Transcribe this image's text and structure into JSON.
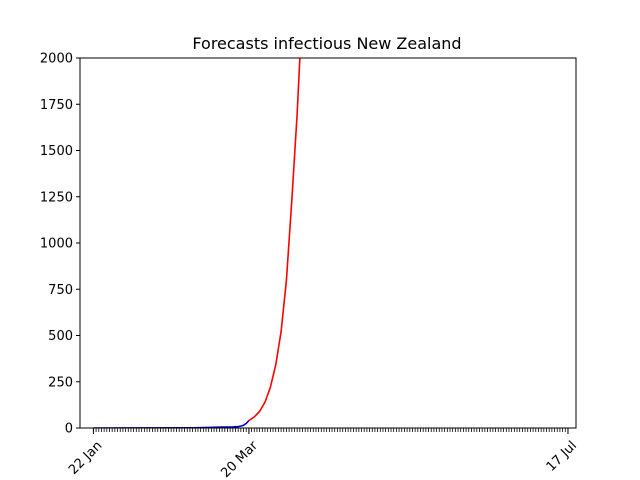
{
  "chart_data": {
    "type": "line",
    "title": "Forecasts infectious New Zealand",
    "xlabel": "",
    "ylabel": "",
    "ylim": [
      0,
      2000
    ],
    "xlim": [
      "2020-01-17",
      "2020-07-20"
    ],
    "yticks": [
      0,
      250,
      500,
      750,
      1000,
      1250,
      1500,
      1750,
      2000
    ],
    "xtick_labels": [
      {
        "date": "2020-01-22",
        "label": "22 Jan"
      },
      {
        "date": "2020-03-20",
        "label": "20 Mar"
      },
      {
        "date": "2020-07-17",
        "label": "17 Jul"
      }
    ],
    "minor_ticks": "daily",
    "grid": false,
    "series": [
      {
        "color": "#0000cc",
        "points": [
          {
            "x": "2020-01-22",
            "y": 0
          },
          {
            "x": "2020-02-28",
            "y": 1
          },
          {
            "x": "2020-03-05",
            "y": 3
          },
          {
            "x": "2020-03-10",
            "y": 5
          },
          {
            "x": "2020-03-14",
            "y": 6
          },
          {
            "x": "2020-03-16",
            "y": 8
          },
          {
            "x": "2020-03-17",
            "y": 10
          },
          {
            "x": "2020-03-18",
            "y": 15
          },
          {
            "x": "2020-03-19",
            "y": 25
          },
          {
            "x": "2020-03-20",
            "y": 40
          }
        ]
      },
      {
        "color": "#ff0000",
        "points": [
          {
            "x": "2020-03-20",
            "y": 40
          },
          {
            "x": "2020-03-22",
            "y": 60
          },
          {
            "x": "2020-03-24",
            "y": 90
          },
          {
            "x": "2020-03-26",
            "y": 140
          },
          {
            "x": "2020-03-28",
            "y": 220
          },
          {
            "x": "2020-03-30",
            "y": 340
          },
          {
            "x": "2020-04-01",
            "y": 520
          },
          {
            "x": "2020-04-03",
            "y": 800
          },
          {
            "x": "2020-04-05",
            "y": 1230
          },
          {
            "x": "2020-04-07",
            "y": 1700
          },
          {
            "x": "2020-04-08",
            "y": 2000
          }
        ]
      }
    ]
  }
}
